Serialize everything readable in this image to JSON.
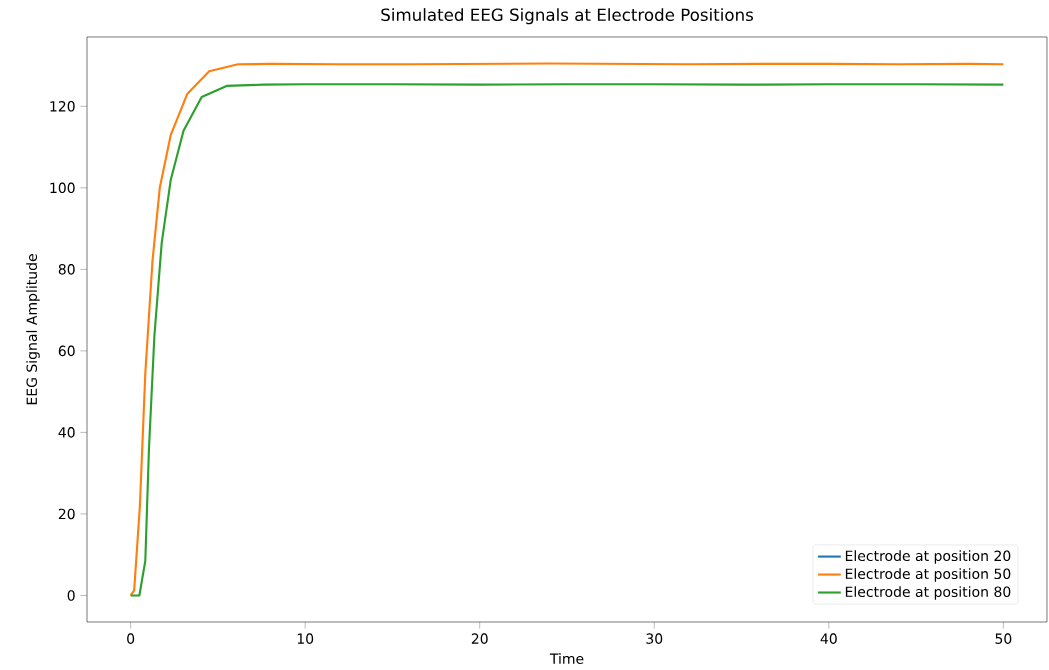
{
  "chart_data": {
    "type": "line",
    "title": "Simulated EEG Signals at Electrode Positions",
    "xlabel": "Time",
    "ylabel": "EEG Signal Amplitude",
    "xlim": [
      -2.5,
      52.5
    ],
    "ylim": [
      -6.5,
      137
    ],
    "xticks": [
      0,
      10,
      20,
      30,
      40,
      50
    ],
    "yticks": [
      0,
      20,
      40,
      60,
      80,
      100,
      120
    ],
    "legend": "bottom right",
    "grid": false,
    "marker": "none",
    "line_style": "solid",
    "series": [
      {
        "name": "Electrode at position 20",
        "color": "#1f77b4"
      },
      {
        "name": "Electrode at position 50",
        "color": "#ff7f0e",
        "x": [
          0,
          0.2,
          0.53,
          0.84,
          1.25,
          1.67,
          2.3,
          3.24,
          4.5,
          6.15,
          8,
          12,
          16,
          20,
          24,
          28,
          32,
          36,
          40,
          44,
          48,
          50
        ],
        "values": [
          0,
          1.2,
          22,
          54.5,
          82,
          100,
          113,
          123,
          128.6,
          130.3,
          130.4,
          130.3,
          130.3,
          130.4,
          130.5,
          130.4,
          130.3,
          130.4,
          130.4,
          130.3,
          130.4,
          130.3
        ]
      },
      {
        "name": "Electrode at position 80",
        "color": "#2ca02c",
        "x": [
          0,
          0.5,
          0.84,
          1.05,
          1.36,
          1.78,
          2.3,
          3.03,
          4.07,
          5.5,
          7.6,
          10,
          15,
          20,
          25,
          30,
          35,
          40,
          45,
          50
        ],
        "values": [
          0,
          0,
          8.5,
          36,
          63.6,
          86.5,
          102,
          114,
          122.3,
          125,
          125.3,
          125.4,
          125.4,
          125.3,
          125.4,
          125.4,
          125.3,
          125.4,
          125.4,
          125.3
        ]
      }
    ]
  }
}
